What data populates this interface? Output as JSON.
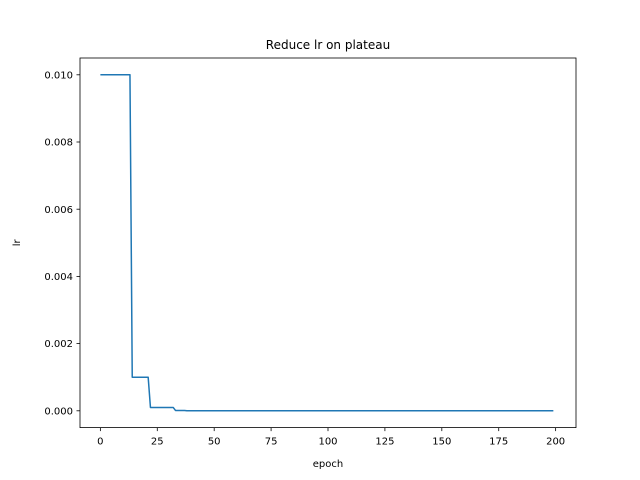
{
  "chart_data": {
    "type": "line",
    "title": "Reduce lr on plateau",
    "xlabel": "epoch",
    "ylabel": "lr",
    "xlim": [
      -8.95,
      208.95
    ],
    "ylim": [
      -0.0005,
      0.0105
    ],
    "xticks": [
      0,
      25,
      50,
      75,
      100,
      125,
      150,
      175,
      200
    ],
    "yticks": [
      0.0,
      0.002,
      0.004,
      0.006,
      0.008,
      0.01
    ],
    "ytick_labels": [
      "0.000",
      "0.002",
      "0.004",
      "0.006",
      "0.008",
      "0.010"
    ],
    "grid": false,
    "series": [
      {
        "color": "#1f77b4",
        "x": [
          0,
          13,
          14,
          21,
          22,
          32,
          33,
          37,
          38,
          199
        ],
        "y": [
          0.01,
          0.01,
          0.001,
          0.001,
          0.0001,
          0.0001,
          1e-05,
          1e-05,
          1e-06,
          1e-06
        ]
      }
    ]
  }
}
